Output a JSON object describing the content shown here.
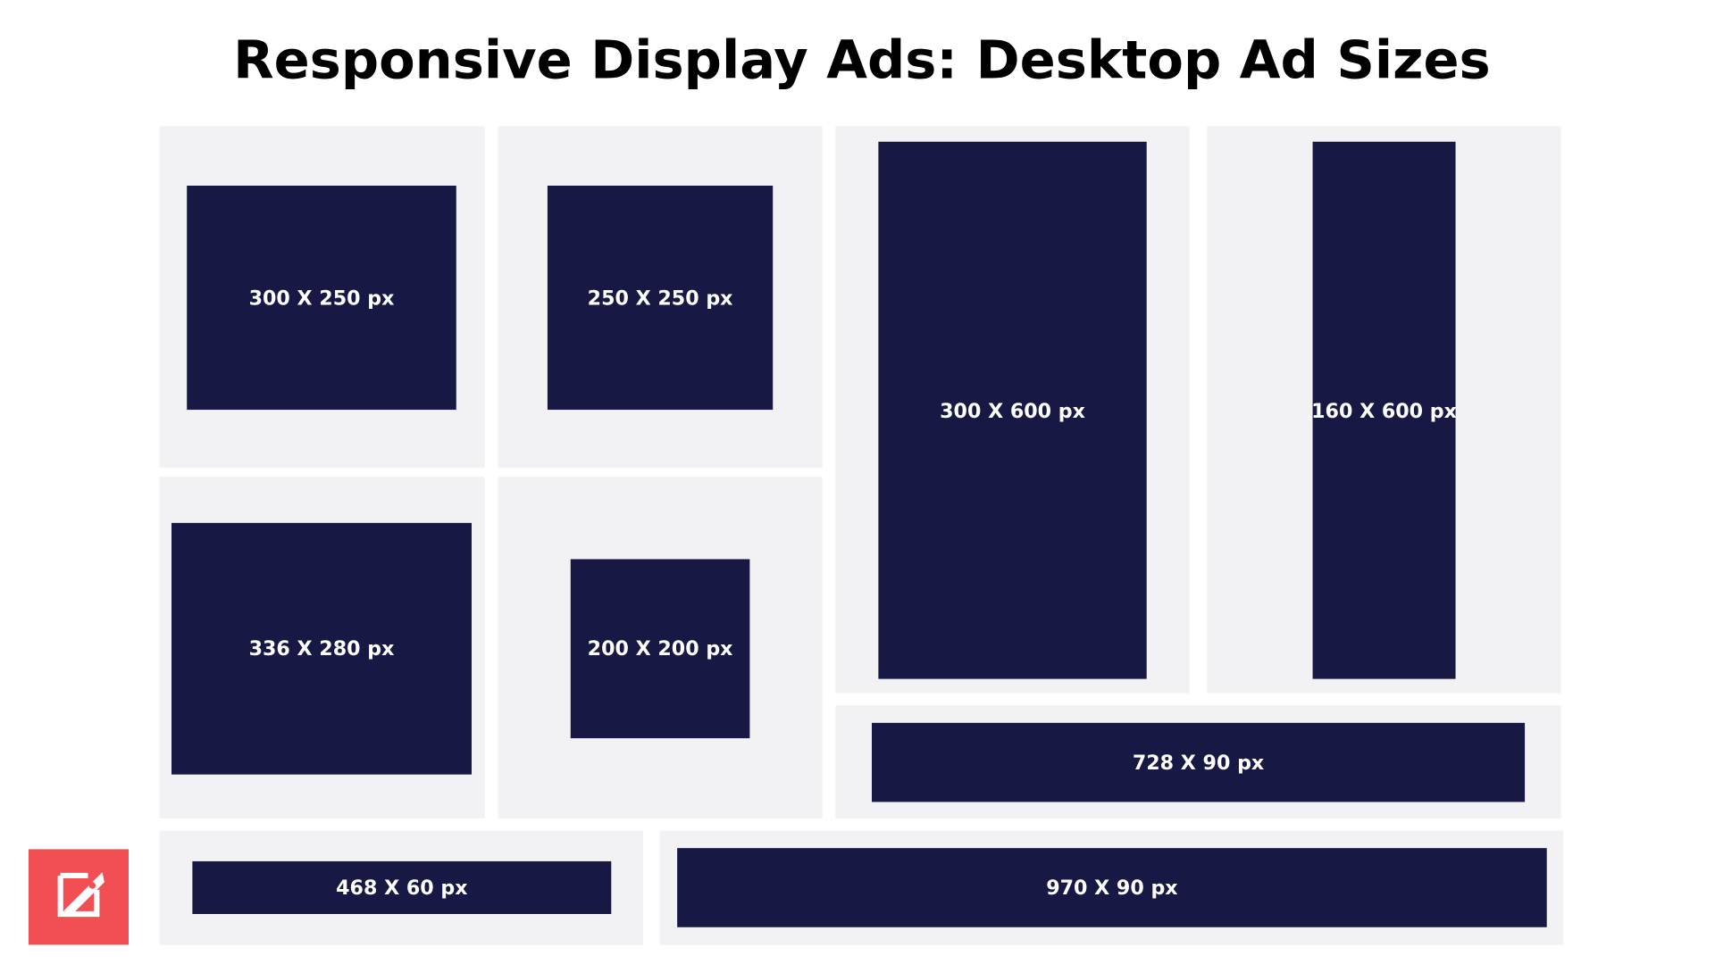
{
  "title": "Responsive Display Ads: Desktop Ad Sizes",
  "ads": [
    "300 X 250 px",
    "250 X 250 px",
    "300 X 600 px",
    "160 X 600 px",
    "336 X 280 px",
    "200 X 200 px",
    "728 X 90 px",
    "468 X 60 px",
    "970 X 90 px"
  ]
}
